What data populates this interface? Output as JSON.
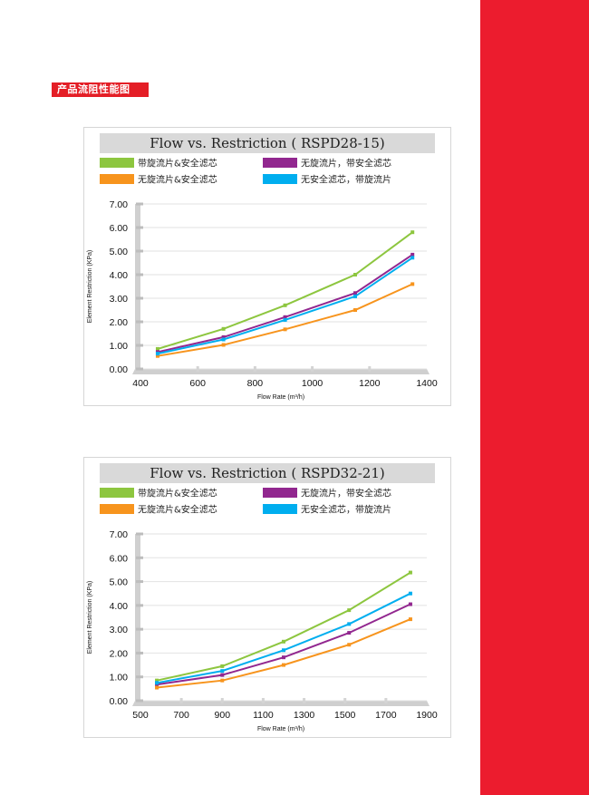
{
  "page": {
    "section_title": "产品流阻性能图",
    "accent_color": "#ec1c2e"
  },
  "chart_data": [
    {
      "type": "line",
      "title": "Flow vs. Restriction ( RSPD28-15)",
      "xlabel": "Flow Rate (m³/h)",
      "ylabel": "Element Restriction (KPa)",
      "xlim": [
        400,
        1400
      ],
      "ylim": [
        0,
        7
      ],
      "x_ticks": [
        400,
        600,
        800,
        1000,
        1200,
        1400
      ],
      "y_ticks": [
        "0.00",
        "1.00",
        "2.00",
        "3.00",
        "4.00",
        "5.00",
        "6.00",
        "7.00"
      ],
      "grid": true,
      "legend": "top",
      "series": [
        {
          "name": "带旋流片&安全滤芯",
          "color": "#8dc63f",
          "x": [
            460,
            690,
            905,
            1150,
            1350
          ],
          "values": [
            0.85,
            1.7,
            2.7,
            4.0,
            5.8
          ]
        },
        {
          "name": "无旋流片，带安全滤芯",
          "color": "#92278f",
          "x": [
            460,
            690,
            905,
            1150,
            1350
          ],
          "values": [
            0.72,
            1.35,
            2.2,
            3.22,
            4.85
          ]
        },
        {
          "name": "无旋流片&安全滤芯",
          "color": "#f7941d",
          "x": [
            460,
            690,
            905,
            1150,
            1350
          ],
          "values": [
            0.55,
            1.02,
            1.68,
            2.5,
            3.6
          ]
        },
        {
          "name": "无安全滤芯，带旋流片",
          "color": "#00aeef",
          "x": [
            460,
            690,
            905,
            1150,
            1350
          ],
          "values": [
            0.65,
            1.25,
            2.08,
            3.08,
            4.72
          ]
        }
      ]
    },
    {
      "type": "line",
      "title": "Flow vs. Restriction ( RSPD32-21)",
      "xlabel": "Flow Rate (m³/h)",
      "ylabel": "Element Restriction (KPa)",
      "xlim": [
        500,
        1900
      ],
      "ylim": [
        0,
        7
      ],
      "x_ticks": [
        500,
        700,
        900,
        1100,
        1300,
        1500,
        1700,
        1900
      ],
      "y_ticks": [
        "0.00",
        "1.00",
        "2.00",
        "3.00",
        "4.00",
        "5.00",
        "6.00",
        "7.00"
      ],
      "grid": true,
      "legend": "top",
      "series": [
        {
          "name": "带旋流片&安全滤芯",
          "color": "#8dc63f",
          "x": [
            580,
            900,
            1200,
            1520,
            1820
          ],
          "values": [
            0.85,
            1.45,
            2.48,
            3.8,
            5.38
          ]
        },
        {
          "name": "无旋流片，带安全滤芯",
          "color": "#92278f",
          "x": [
            580,
            900,
            1200,
            1520,
            1820
          ],
          "values": [
            0.68,
            1.08,
            1.82,
            2.85,
            4.05
          ]
        },
        {
          "name": "无旋流片&安全滤芯",
          "color": "#f7941d",
          "x": [
            580,
            900,
            1200,
            1520,
            1820
          ],
          "values": [
            0.55,
            0.85,
            1.5,
            2.35,
            3.42
          ]
        },
        {
          "name": "无安全滤芯，带旋流片",
          "color": "#00aeef",
          "x": [
            580,
            900,
            1200,
            1520,
            1820
          ],
          "values": [
            0.75,
            1.25,
            2.12,
            3.22,
            4.5
          ]
        }
      ]
    }
  ]
}
